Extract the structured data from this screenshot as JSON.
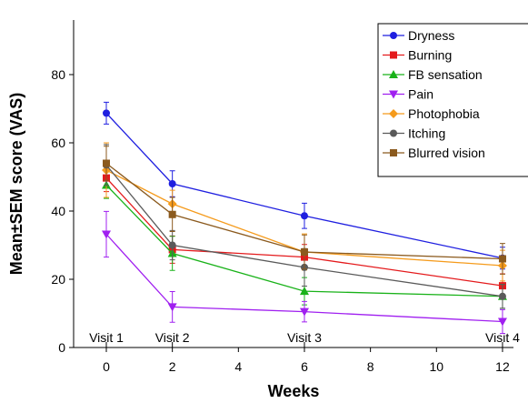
{
  "chart_data": {
    "type": "line",
    "xlabel": "Weeks",
    "ylabel": "Mean±SEM score (VAS)",
    "xlim": [
      -2,
      12.5
    ],
    "ylim": [
      0,
      80
    ],
    "x_ticks": [
      0,
      2,
      4,
      6,
      8,
      10,
      12
    ],
    "y_ticks": [
      0,
      20,
      40,
      60,
      80
    ],
    "grid": false,
    "legend_position": "top-right",
    "visits": [
      {
        "label": "Visit 1",
        "x": 0
      },
      {
        "label": "Visit 2",
        "x": 2
      },
      {
        "label": "Visit 3",
        "x": 6
      },
      {
        "label": "Visit 4",
        "x": 12
      }
    ],
    "x": [
      0,
      2,
      6,
      12
    ],
    "series": [
      {
        "name": "Dryness",
        "color": "#1f1fe0",
        "marker": "circle",
        "values": [
          68.7,
          48.0,
          38.6,
          26.2
        ],
        "errors": [
          3.2,
          3.8,
          3.7,
          3.2
        ]
      },
      {
        "name": "Burning",
        "color": "#e41a1c",
        "marker": "square",
        "values": [
          49.7,
          28.7,
          26.5,
          18.1
        ],
        "errors": [
          4.0,
          4.0,
          3.7,
          3.5
        ]
      },
      {
        "name": "FB sensation",
        "color": "#19b219",
        "marker": "triangle-up",
        "values": [
          47.6,
          27.6,
          16.5,
          15.0
        ],
        "errors": [
          3.9,
          5.0,
          4.0,
          3.5
        ]
      },
      {
        "name": "Pain",
        "color": "#a020f0",
        "marker": "triangle-down",
        "values": [
          33.2,
          11.9,
          10.5,
          7.6
        ],
        "errors": [
          6.7,
          4.5,
          3.0,
          3.5
        ]
      },
      {
        "name": "Photophobia",
        "color": "#f59b1c",
        "marker": "diamond",
        "values": [
          52.0,
          42.1,
          28.0,
          24.0
        ],
        "errors": [
          8.0,
          4.0,
          5.3,
          4.5
        ]
      },
      {
        "name": "Itching",
        "color": "#5a5a5a",
        "marker": "circle",
        "values": [
          53.5,
          30.0,
          23.5,
          15.0
        ],
        "errors": [
          6.0,
          4.3,
          5.5,
          3.5
        ]
      },
      {
        "name": "Blurred vision",
        "color": "#8b5a1e",
        "marker": "square",
        "values": [
          54.0,
          39.0,
          28.0,
          26.0
        ],
        "errors": [
          5.0,
          5.0,
          5.0,
          4.5
        ]
      }
    ]
  }
}
